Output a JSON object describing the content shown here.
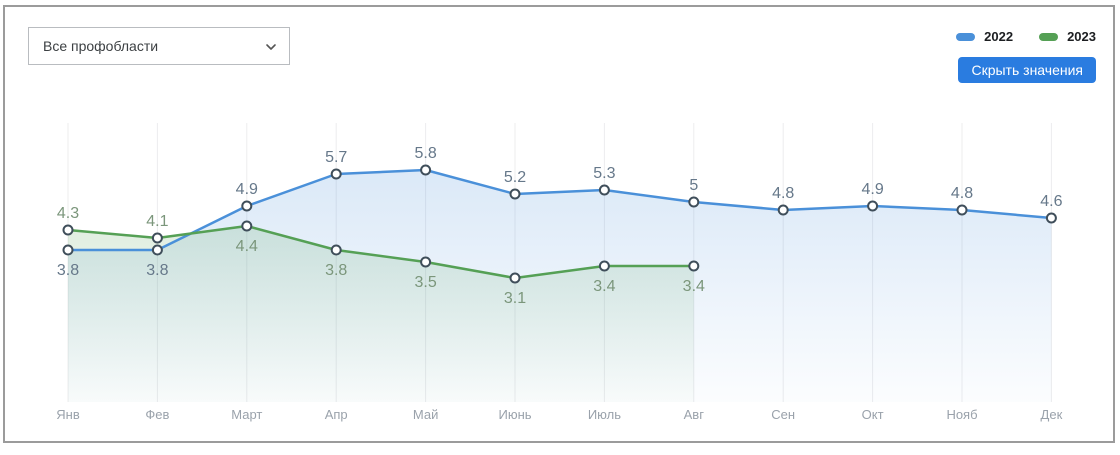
{
  "filter_dropdown": {
    "value": "Все профобласти"
  },
  "hide_values_button": {
    "label": "Скрыть значения",
    "color": "#2a7ce0"
  },
  "legend": [
    {
      "label": "2022",
      "color": "#4a90d9"
    },
    {
      "label": "2023",
      "color": "#55a055"
    }
  ],
  "colors": {
    "frame_border": "#9b9b9b",
    "gridline": "#ececee",
    "month_label": "#9aa2ab",
    "marker_stroke": "#3f4e5a",
    "marker_fill": "#ffffff"
  },
  "chart_data": {
    "type": "line",
    "categories": [
      "Янв",
      "Фев",
      "Март",
      "Апр",
      "Май",
      "Июнь",
      "Июль",
      "Авг",
      "Сен",
      "Окт",
      "Нояб",
      "Дек"
    ],
    "series": [
      {
        "name": "2022",
        "color": "#4a90d9",
        "label_color": "#66788a",
        "values": [
          3.8,
          3.8,
          4.9,
          5.7,
          5.8,
          5.2,
          5.3,
          5,
          4.8,
          4.9,
          4.8,
          4.6
        ]
      },
      {
        "name": "2023",
        "color": "#55a055",
        "label_color": "#7b967b",
        "values": [
          4.3,
          4.1,
          4.4,
          3.8,
          3.5,
          3.1,
          3.4,
          3.4,
          null,
          null,
          null,
          null
        ]
      }
    ],
    "title": "",
    "xlabel": "",
    "ylabel": "",
    "ylim": [
      0,
      7
    ],
    "grid": "vertical",
    "legend_position": "top-right",
    "markers": "open-circle",
    "area_fill": true,
    "data_labels": true
  }
}
